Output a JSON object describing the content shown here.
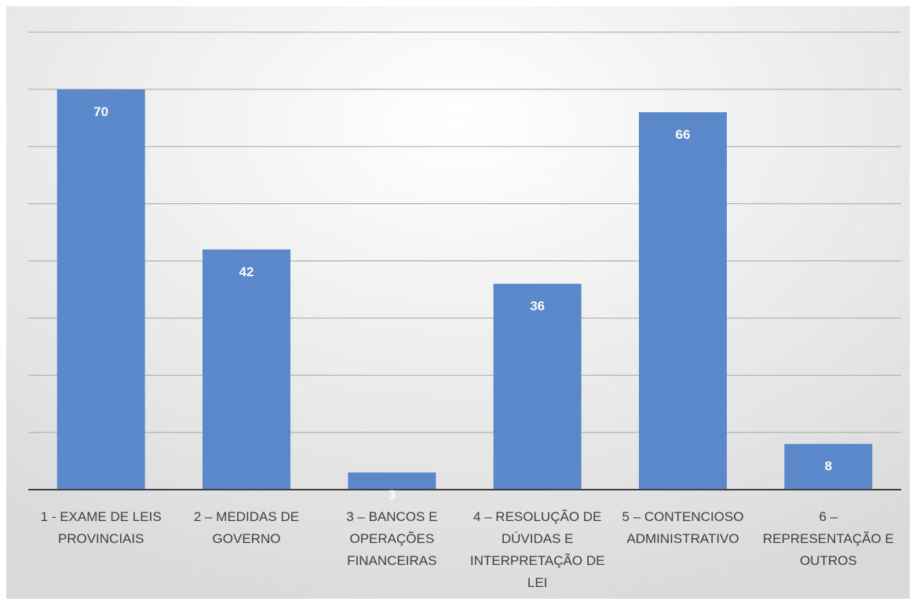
{
  "chart_data": {
    "type": "bar",
    "title": "",
    "xlabel": "",
    "ylabel": "",
    "categories": [
      [
        "1 - EXAME DE LEIS",
        "PROVINCIAIS"
      ],
      [
        "2 – MEDIDAS DE",
        "GOVERNO"
      ],
      [
        "3 – BANCOS E",
        "OPERAÇÕES",
        "FINANCEIRAS"
      ],
      [
        "4 – RESOLUÇÃO DE",
        "DÚVIDAS E",
        "INTERPRETAÇÃO DE",
        "LEI"
      ],
      [
        "5 – CONTENCIOSO",
        "ADMINISTRATIVO"
      ],
      [
        "6 –",
        "REPRESENTAÇÃO E",
        "OUTROS"
      ]
    ],
    "values": [
      70,
      42,
      3,
      36,
      66,
      8
    ],
    "ylim": [
      0,
      80
    ],
    "grid": true,
    "gridline_interval": 10,
    "y_tick_labels_visible": false,
    "data_labels": true,
    "colors": {
      "bar": "#5b87cb",
      "data_label": "#ffffff",
      "category_text": "#404040",
      "gridline": "#a6a6a6",
      "axis": "#404040",
      "background_top": "#ffffff",
      "background_bottom": "#d9d9d9"
    }
  }
}
